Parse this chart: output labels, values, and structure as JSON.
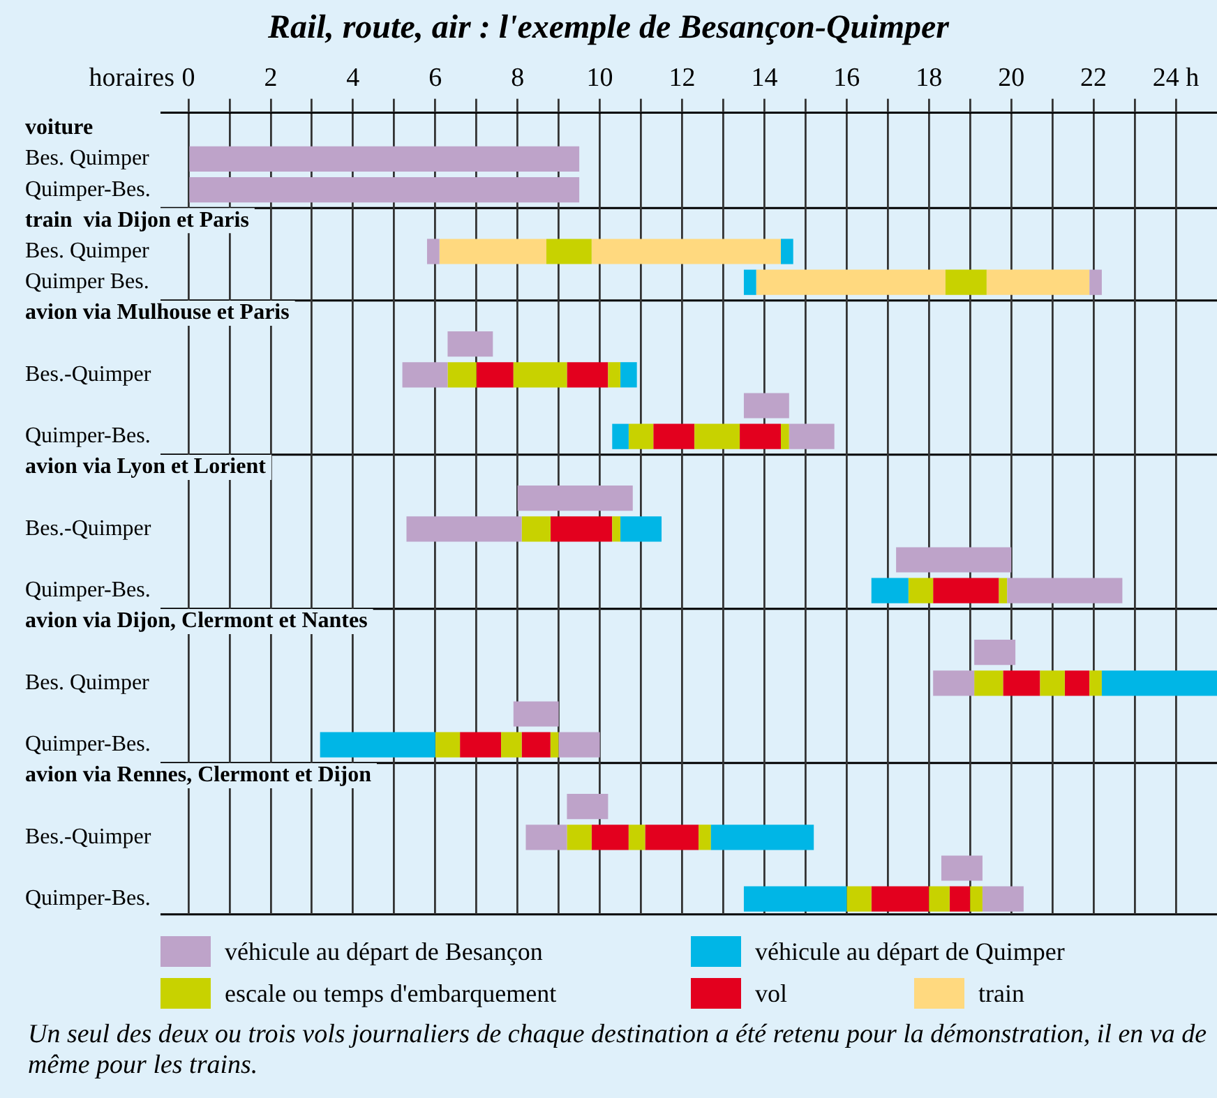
{
  "chart_data": {
    "type": "bar",
    "orientation": "horizontal",
    "title": "Rail, route, air : l'exemple de Besançon-Quimper",
    "xlabel": "horaires",
    "categories": [
      "voiture",
      "Bes. Quimper",
      "Quimper-Bes.",
      "train  via Dijon et Paris",
      "Bes. Quimper",
      "Quimper Bes.",
      "avion via Mulhouse et Paris",
      null,
      "Bes.-Quimper",
      null,
      "Quimper-Bes.",
      "avion via Lyon et Lorient",
      null,
      "Bes.-Quimper",
      null,
      "Quimper-Bes.",
      "avion via Dijon, Clermont et Nantes",
      null,
      "Bes. Quimper",
      null,
      "Quimper-Bes.",
      "avion via Rennes, Clermont et Dijon",
      null,
      "Bes.-Quimper",
      null,
      "Quimper-Bes."
    ],
    "xlim": [
      0,
      25
    ],
    "xticks": [
      0,
      {
        "value": 1,
        "label": null
      },
      2,
      {
        "value": 3,
        "label": null
      },
      4,
      {
        "value": 5,
        "label": null
      },
      6,
      {
        "value": 7,
        "label": null
      },
      8,
      {
        "value": 9,
        "label": null
      },
      10,
      {
        "value": 11,
        "label": null
      },
      12,
      {
        "value": 13,
        "label": null
      },
      14,
      {
        "value": 15,
        "label": null
      },
      16,
      {
        "value": 17,
        "label": null
      },
      18,
      {
        "value": 19,
        "label": null
      },
      20,
      {
        "value": 21,
        "label": null
      },
      22,
      {
        "value": 23,
        "label": null
      },
      {
        "value": 24,
        "label": "24 h"
      }
    ],
    "grid": "x",
    "legend": "bottom",
    "series": [
      {
        "name": "véhicule au départ de Besançon",
        "color": "#bea3c9",
        "base": [
          null,
          0,
          0,
          null,
          5.8,
          21.9,
          null,
          6.3,
          5.2,
          13.5,
          14.6,
          null,
          8.0,
          5.3,
          17.2,
          19.9,
          null,
          19.1,
          18.1,
          7.9,
          9.0,
          null,
          9.2,
          8.2,
          18.3,
          19.3
        ],
        "values": [
          null,
          9.5,
          9.5,
          null,
          0.3,
          0.3,
          null,
          1.1,
          1.1,
          1.1,
          1.1,
          null,
          2.8,
          2.8,
          2.8,
          2.8,
          null,
          1.0,
          1.0,
          1.1,
          1.0,
          null,
          1.0,
          1.0,
          1.0,
          1.0
        ]
      },
      {
        "name": "véhicule au départ de Quimper",
        "color": "#00b6e6",
        "base": [
          null,
          null,
          null,
          null,
          14.4,
          13.5,
          null,
          null,
          10.5,
          null,
          10.3,
          null,
          null,
          10.5,
          null,
          16.6,
          null,
          null,
          22.2,
          null,
          3.2,
          null,
          null,
          12.7,
          null,
          13.5
        ],
        "values": [
          null,
          null,
          null,
          null,
          0.3,
          0.3,
          null,
          null,
          0.4,
          null,
          0.4,
          null,
          null,
          1.0,
          null,
          0.9,
          null,
          null,
          2.8,
          null,
          2.8,
          null,
          null,
          2.5,
          null,
          2.5
        ]
      },
      {
        "name": "escale ou temps d'embarquement",
        "color": "#c8d200",
        "base": [
          null,
          null,
          null,
          null,
          8.7,
          18.4,
          null,
          null,
          6.3,
          null,
          10.7,
          null,
          null,
          8.1,
          null,
          17.5,
          null,
          null,
          19.1,
          null,
          6.0,
          null,
          null,
          9.2,
          null,
          16.0
        ],
        "values": [
          null,
          null,
          null,
          null,
          1.1,
          1.0,
          null,
          null,
          0.7,
          null,
          0.6,
          null,
          null,
          0.7,
          null,
          0.6,
          null,
          null,
          0.7,
          null,
          0.6,
          null,
          null,
          0.6,
          null,
          0.6
        ]
      },
      {
        "color": "#c8d200",
        "base": [
          null,
          null,
          null,
          null,
          null,
          null,
          null,
          null,
          7.9,
          null,
          12.3,
          null,
          null,
          10.3,
          null,
          19.7,
          null,
          null,
          20.7,
          null,
          7.6,
          null,
          null,
          10.7,
          null,
          18.0
        ],
        "values": [
          null,
          null,
          null,
          null,
          null,
          null,
          null,
          null,
          1.3,
          null,
          1.1,
          null,
          null,
          0.2,
          null,
          0.2,
          null,
          null,
          0.6,
          null,
          0.5,
          null,
          null,
          0.4,
          null,
          0.5
        ]
      },
      {
        "color": "#c8d200",
        "base": [
          null,
          null,
          null,
          null,
          null,
          null,
          null,
          null,
          10.2,
          null,
          14.4,
          null,
          null,
          null,
          null,
          null,
          null,
          null,
          21.9,
          null,
          8.8,
          null,
          null,
          12.4,
          null,
          19.0
        ],
        "values": [
          null,
          null,
          null,
          null,
          null,
          null,
          null,
          null,
          0.3,
          null,
          0.2,
          null,
          null,
          null,
          null,
          null,
          null,
          null,
          0.3,
          null,
          0.2,
          null,
          null,
          0.3,
          null,
          0.3
        ]
      },
      {
        "name": "vol",
        "color": "#e3001e",
        "base": [
          null,
          null,
          null,
          null,
          null,
          null,
          null,
          null,
          7.0,
          null,
          11.3,
          null,
          null,
          8.8,
          null,
          18.1,
          null,
          null,
          19.8,
          null,
          6.6,
          null,
          null,
          9.8,
          null,
          16.6
        ],
        "values": [
          null,
          null,
          null,
          null,
          null,
          null,
          null,
          null,
          0.9,
          null,
          1.0,
          null,
          null,
          1.5,
          null,
          1.6,
          null,
          null,
          0.9,
          null,
          1.0,
          null,
          null,
          0.9,
          null,
          1.4
        ]
      },
      {
        "color": "#e3001e",
        "base": [
          null,
          null,
          null,
          null,
          null,
          null,
          null,
          null,
          9.2,
          null,
          13.4,
          null,
          null,
          null,
          null,
          null,
          null,
          null,
          21.3,
          null,
          8.1,
          null,
          null,
          11.1,
          null,
          18.5
        ],
        "values": [
          null,
          null,
          null,
          null,
          null,
          null,
          null,
          null,
          1.0,
          null,
          1.0,
          null,
          null,
          null,
          null,
          null,
          null,
          null,
          0.6,
          null,
          0.7,
          null,
          null,
          1.3,
          null,
          0.5
        ]
      },
      {
        "name": "train",
        "color": "#ffd97f",
        "base": [
          null,
          null,
          null,
          null,
          6.1,
          13.8,
          null,
          null,
          null,
          null,
          null,
          null,
          null,
          null,
          null,
          null,
          null,
          null,
          null,
          null,
          null,
          null,
          null,
          null,
          null,
          null
        ],
        "values": [
          null,
          null,
          null,
          null,
          2.6,
          4.6,
          null,
          null,
          null,
          null,
          null,
          null,
          null,
          null,
          null,
          null,
          null,
          null,
          null,
          null,
          null,
          null,
          null,
          null,
          null,
          null
        ]
      },
      {
        "color": "#ffd97f",
        "base": [
          null,
          null,
          null,
          null,
          9.8,
          19.4,
          null,
          null,
          null,
          null,
          null,
          null,
          null,
          null,
          null,
          null,
          null,
          null,
          null,
          null,
          null,
          null,
          null,
          null,
          null,
          null
        ],
        "values": [
          null,
          null,
          null,
          null,
          4.6,
          2.5,
          null,
          null,
          null,
          null,
          null,
          null,
          null,
          null,
          null,
          null,
          null,
          null,
          null,
          null,
          null,
          null,
          null,
          null,
          null,
          null
        ]
      }
    ],
    "annotations": [
      "Un seul des deux ou trois vols journaliers de chaque destination a été retenu pour la démonstration, il en va de même pour les trains."
    ]
  }
}
